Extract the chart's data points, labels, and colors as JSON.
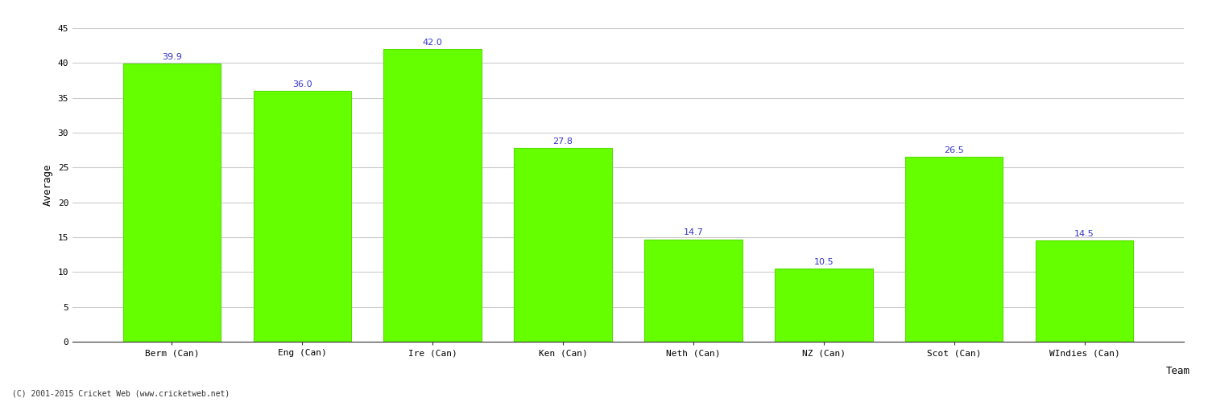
{
  "categories": [
    "Berm (Can)",
    "Eng (Can)",
    "Ire (Can)",
    "Ken (Can)",
    "Neth (Can)",
    "NZ (Can)",
    "Scot (Can)",
    "WIndies (Can)"
  ],
  "values": [
    39.9,
    36.0,
    42.0,
    27.8,
    14.7,
    10.5,
    26.5,
    14.5
  ],
  "bar_color": "#66ff00",
  "bar_edge_color": "#55dd00",
  "value_color": "#3333cc",
  "xlabel": "Team",
  "ylabel": "Average",
  "ylim": [
    0,
    45
  ],
  "yticks": [
    0,
    5,
    10,
    15,
    20,
    25,
    30,
    35,
    40,
    45
  ],
  "background_color": "#ffffff",
  "grid_color": "#cccccc",
  "footer": "(C) 2001-2015 Cricket Web (www.cricketweb.net)",
  "label_fontsize": 9,
  "tick_fontsize": 8,
  "value_fontsize": 8,
  "footer_fontsize": 7
}
